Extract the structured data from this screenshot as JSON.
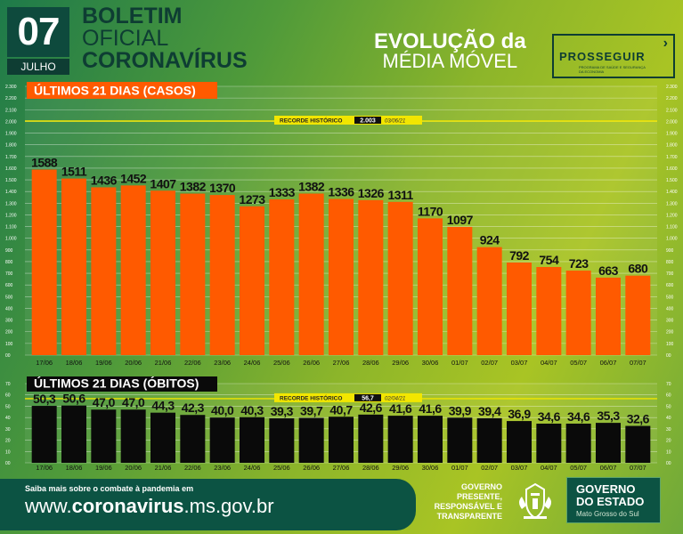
{
  "header": {
    "day": "07",
    "month": "JULHO",
    "line1": "BOLETIM",
    "line2": "OFICIAL",
    "line3": "CORONAVÍRUS",
    "evo1": "EVOLUÇÃO da",
    "evo2": "MÉDIA MÓVEL",
    "brand": "PROSSEGUIR",
    "brand_sub": "PROGRAMA DE SAÚDE E SEGURANÇA DA ECONOMIA"
  },
  "chart_data": [
    {
      "type": "bar",
      "title": "ÚLTIMOS 21 DIAS (CASOS)",
      "categories": [
        "17/06",
        "18/06",
        "19/06",
        "20/06",
        "21/06",
        "22/06",
        "23/06",
        "24/06",
        "25/06",
        "26/06",
        "27/06",
        "28/06",
        "29/06",
        "30/06",
        "01/07",
        "02/07",
        "03/07",
        "04/07",
        "05/07",
        "06/07",
        "07/07"
      ],
      "values": [
        1588,
        1511,
        1436,
        1452,
        1407,
        1382,
        1370,
        1273,
        1333,
        1382,
        1336,
        1326,
        1311,
        1170,
        1097,
        924,
        792,
        754,
        723,
        663,
        680
      ],
      "value_labels": [
        "1588",
        "1511",
        "1436",
        "1452",
        "1407",
        "1382",
        "1370",
        "1273",
        "1333",
        "1382",
        "1336",
        "1326",
        "1311",
        "1170",
        "1097",
        "924",
        "792",
        "754",
        "723",
        "663",
        "680"
      ],
      "ylim": [
        0,
        2300
      ],
      "yticks": [
        0,
        100,
        200,
        300,
        400,
        500,
        600,
        700,
        800,
        900,
        1000,
        1100,
        1200,
        1300,
        1400,
        1500,
        1600,
        1700,
        1800,
        1900,
        2000,
        2100,
        2200,
        2300
      ],
      "ytick_labels": [
        "00",
        "100",
        "200",
        "300",
        "400",
        "500",
        "600",
        "700",
        "800",
        "900",
        "1.000",
        "1.100",
        "1.200",
        "1.300",
        "1.400",
        "1.500",
        "1.600",
        "1.700",
        "1.800",
        "1.900",
        "2.000",
        "2.100",
        "2.200",
        "2.300"
      ],
      "record": {
        "label": "RECORDE HISTÓRICO",
        "value": 2003,
        "value_label": "2.003",
        "date": "03/06/21"
      },
      "colors": {
        "bar": "#ff5a00",
        "header": "#ff5a00",
        "record_line": "#f2e600"
      },
      "grid": true
    },
    {
      "type": "bar",
      "title": "ÚLTIMOS 21 DIAS (ÓBITOS)",
      "categories": [
        "17/06",
        "18/06",
        "19/06",
        "20/06",
        "21/06",
        "22/06",
        "23/06",
        "24/06",
        "25/06",
        "26/06",
        "27/06",
        "28/06",
        "29/06",
        "30/06",
        "01/07",
        "02/07",
        "03/07",
        "04/07",
        "05/07",
        "06/07",
        "07/07"
      ],
      "values": [
        50.3,
        50.6,
        47.0,
        47.0,
        44.3,
        42.3,
        40.0,
        40.3,
        39.3,
        39.7,
        40.7,
        42.6,
        41.6,
        41.6,
        39.9,
        39.4,
        36.9,
        34.6,
        34.6,
        35.3,
        32.6
      ],
      "value_labels": [
        "50,3",
        "50,6",
        "47,0",
        "47,0",
        "44,3",
        "42,3",
        "40,0",
        "40,3",
        "39,3",
        "39,7",
        "40,7",
        "42,6",
        "41,6",
        "41,6",
        "39,9",
        "39,4",
        "36,9",
        "34,6",
        "34,6",
        "35,3",
        "32,6"
      ],
      "ylim": [
        0,
        70
      ],
      "yticks": [
        0,
        10,
        20,
        30,
        40,
        50,
        60,
        70
      ],
      "ytick_labels": [
        "00",
        "10",
        "20",
        "30",
        "40",
        "50",
        "60",
        "70"
      ],
      "record": {
        "label": "RECORDE HISTÓRICO",
        "value": 56.7,
        "value_label": "56,7",
        "date": "02/04/21"
      },
      "colors": {
        "bar": "#0a0a0a",
        "header": "#0a0a0a",
        "record_line": "#f2e600"
      },
      "grid": true
    }
  ],
  "footer": {
    "small": "Saiba mais sobre o combate à pandemia em",
    "url_pre": "www.",
    "url_bold": "coronavirus",
    "url_post": ".ms.gov.br",
    "gov_lines": [
      "GOVERNO",
      "PRESENTE,",
      "RESPONSÁVEL E",
      "TRANSPARENTE"
    ],
    "gov_title1": "GOVERNO",
    "gov_title2": "DO ESTADO",
    "gov_state": "Mato Grosso do Sul"
  }
}
